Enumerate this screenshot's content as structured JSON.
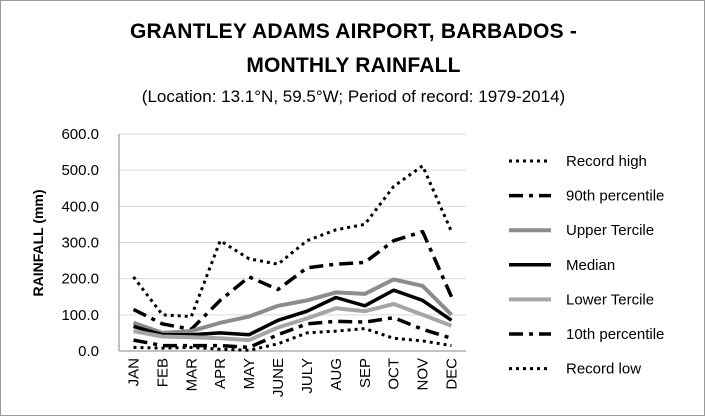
{
  "chart_data": {
    "type": "line",
    "title_line1": "GRANTLEY ADAMS AIRPORT, BARBADOS -",
    "title_line2": "MONTHLY RAINFALL",
    "subtitle": "(Location: 13.1°N, 59.5°W; Period of record: 1979-2014)",
    "ylabel": "RAINFALL (mm)",
    "xlabel": "",
    "ylim": [
      0,
      600
    ],
    "yticks": [
      "0.0",
      "100.0",
      "200.0",
      "300.0",
      "400.0",
      "500.0",
      "600.0"
    ],
    "ytick_values": [
      0,
      100,
      200,
      300,
      400,
      500,
      600
    ],
    "categories": [
      "JAN",
      "FEB",
      "MAR",
      "APR",
      "MAY",
      "JUNE",
      "JULY",
      "AUG",
      "SEP",
      "OCT",
      "NOV",
      "DEC"
    ],
    "grid": true,
    "legend_position": "right",
    "series": [
      {
        "name": "Record high",
        "style": "dotted",
        "color": "#000000",
        "width": 3,
        "values": [
          205,
          100,
          95,
          305,
          255,
          240,
          305,
          335,
          350,
          455,
          512,
          330
        ]
      },
      {
        "name": "90th percentile",
        "style": "dashdot",
        "color": "#000000",
        "width": 3.5,
        "values": [
          115,
          75,
          60,
          140,
          205,
          170,
          230,
          240,
          245,
          305,
          330,
          150
        ]
      },
      {
        "name": "Upper Tercile",
        "style": "solid",
        "color": "#8c8c8c",
        "width": 4,
        "values": [
          78,
          50,
          55,
          78,
          95,
          125,
          140,
          162,
          158,
          198,
          180,
          100
        ]
      },
      {
        "name": "Median",
        "style": "solid",
        "color": "#000000",
        "width": 3.5,
        "values": [
          68,
          45,
          45,
          50,
          45,
          85,
          110,
          148,
          125,
          168,
          140,
          85
        ]
      },
      {
        "name": "Lower Tercile",
        "style": "solid",
        "color": "#a6a6a6",
        "width": 4,
        "values": [
          55,
          40,
          38,
          35,
          30,
          65,
          90,
          118,
          110,
          130,
          100,
          70
        ]
      },
      {
        "name": "10th percentile",
        "style": "dashdot",
        "color": "#000000",
        "width": 3.5,
        "values": [
          30,
          15,
          15,
          15,
          10,
          45,
          75,
          82,
          80,
          92,
          60,
          35
        ]
      },
      {
        "name": "Record low",
        "style": "dotted",
        "color": "#000000",
        "width": 3,
        "values": [
          10,
          8,
          10,
          5,
          2,
          20,
          50,
          55,
          62,
          35,
          28,
          15
        ]
      }
    ]
  }
}
